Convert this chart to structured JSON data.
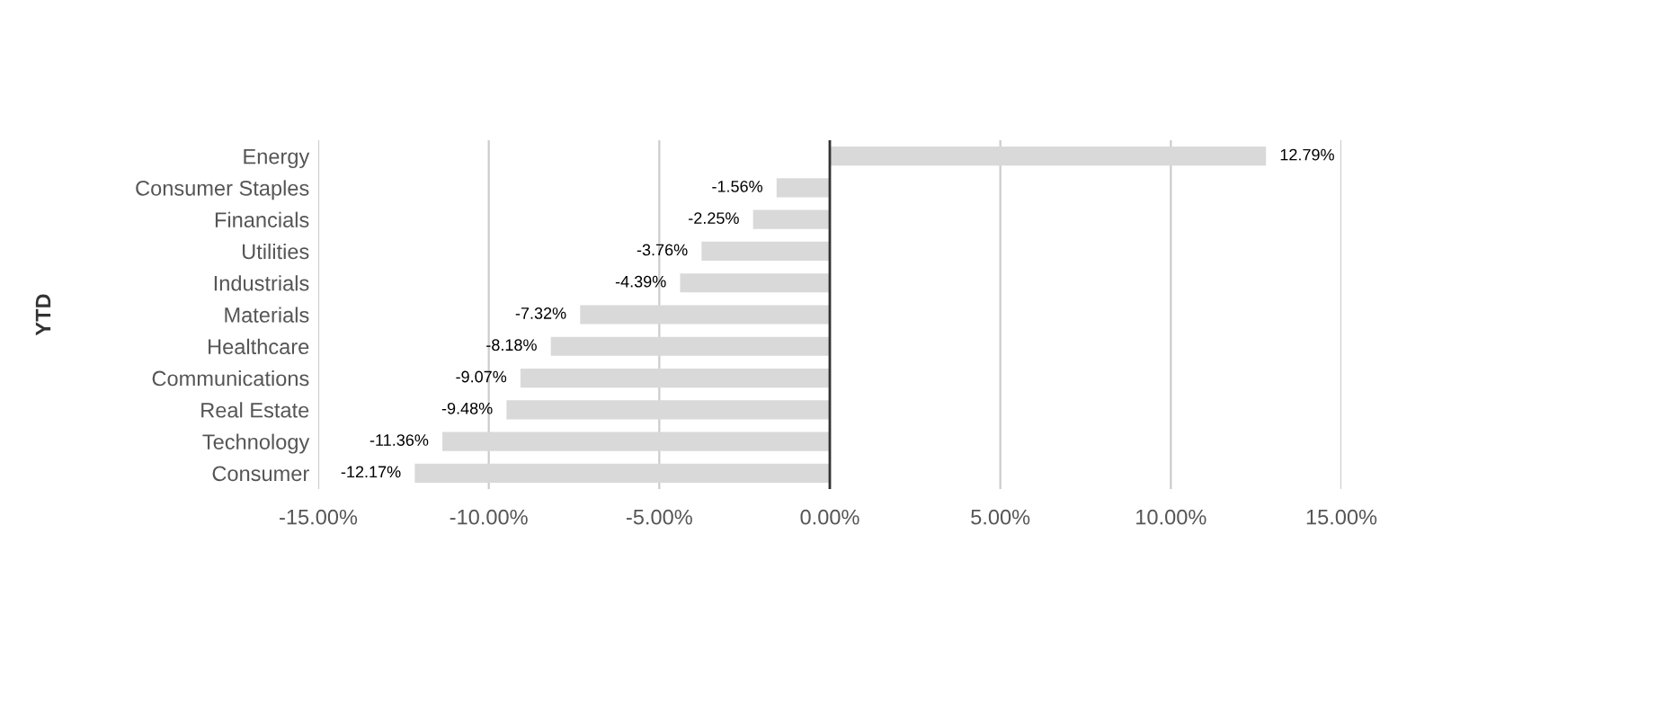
{
  "chart_data": {
    "type": "bar",
    "orientation": "horizontal",
    "ylabel": "YTD",
    "categories": [
      "Energy",
      "Consumer Staples",
      "Financials",
      "Utilities",
      "Industrials",
      "Materials",
      "Healthcare",
      "Communications",
      "Real Estate",
      "Technology",
      "Consumer"
    ],
    "values": [
      12.79,
      -1.56,
      -2.25,
      -3.76,
      -4.39,
      -7.32,
      -8.18,
      -9.07,
      -9.48,
      -11.36,
      -12.17
    ],
    "value_labels": [
      "12.79%",
      "-1.56%",
      "-2.25%",
      "-3.76%",
      "-4.39%",
      "-7.32%",
      "-8.18%",
      "-9.07%",
      "-9.48%",
      "-11.36%",
      "-12.17%"
    ],
    "color": "#d9d9d9",
    "xlim": [
      -15,
      15
    ],
    "xticks": [
      {
        "value": -15,
        "label": "-15.00%"
      },
      {
        "value": -10,
        "label": "-10.00%"
      },
      {
        "value": -5,
        "label": "-5.00%"
      },
      {
        "value": 0,
        "label": "0.00%"
      },
      {
        "value": 5,
        "label": "5.00%"
      },
      {
        "value": 10,
        "label": "10.00%"
      },
      {
        "value": 15,
        "label": "15.00%"
      }
    ],
    "ref_lines": [
      {
        "axis": "x",
        "value": 0,
        "color": "#333333"
      }
    ],
    "grid": "x",
    "legend": false
  }
}
